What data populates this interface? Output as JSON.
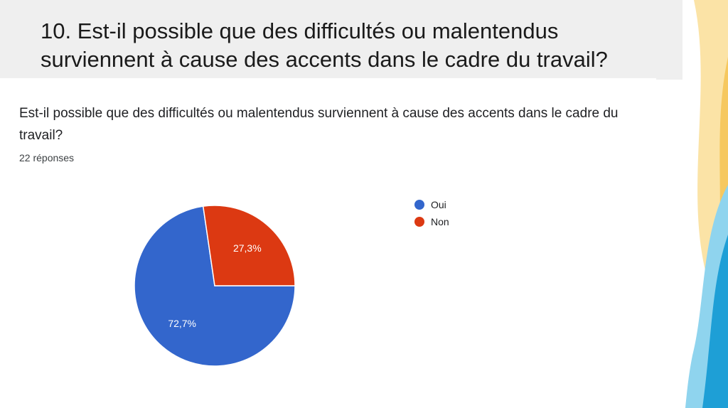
{
  "slide": {
    "title": "10. Est-il possible que des difficultés ou malentendus surviennent à cause des accents dans le cadre du travail?"
  },
  "card": {
    "question": "Est-il possible que des difficultés ou malentendus surviennent à cause des accents dans le cadre du travail?",
    "responses": "22 réponses"
  },
  "chart_data": {
    "type": "pie",
    "title": "Est-il possible que des difficultés ou malentendus surviennent à cause des accents dans le cadre du travail?",
    "categories": [
      "Oui",
      "Non"
    ],
    "values": [
      72.7,
      27.3
    ],
    "labels": [
      "72,7%",
      "27,3%"
    ],
    "colors": [
      "#3366cc",
      "#dc3912"
    ],
    "legend_position": "right"
  },
  "colors": {
    "title_band": "#efefef",
    "deco_blue": "#1e9fd6",
    "deco_yellow": "#f6c85f"
  }
}
